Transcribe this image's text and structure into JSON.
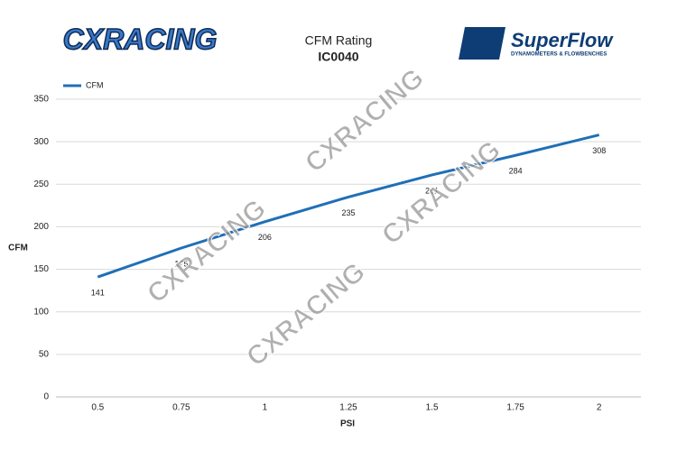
{
  "chart_data": {
    "type": "line",
    "title": "CFM Rating",
    "subtitle": "IC0040",
    "x_label": "PSI",
    "y_label": "CFM",
    "categories": [
      "0.5",
      "0.75",
      "1",
      "1.25",
      "1.5",
      "1.75",
      "2"
    ],
    "series": [
      {
        "name": "CFM",
        "color": "#1f6fb7",
        "values": [
          141,
          175,
          206,
          235,
          261,
          284,
          308
        ]
      }
    ],
    "ylim": [
      0,
      350
    ],
    "yticks": [
      0,
      50,
      100,
      150,
      200,
      250,
      300,
      350
    ],
    "grid": true,
    "legend": "top-left"
  },
  "logos": {
    "left": "CXRACING",
    "right": "SuperFlow",
    "right_tagline": "DYNAMOMETERS & FLOWBENCHES"
  },
  "watermarks": [
    "CXRACING",
    "CXRACING",
    "CXRACING",
    "CXRACING"
  ]
}
